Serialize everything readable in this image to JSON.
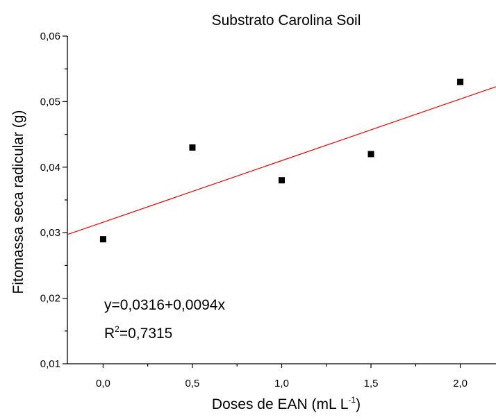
{
  "chart_data": {
    "type": "scatter",
    "title": "Substrato Carolina Soil",
    "xlabel": {
      "base": "Doses de EAN (mL L",
      "sup": "-1",
      "close": ")"
    },
    "ylabel": "Fitomassa seca radicular (g)",
    "xlim": [
      -0.2,
      2.2
    ],
    "ylim": [
      0.01,
      0.06
    ],
    "x_ticks": [
      0.0,
      0.5,
      1.0,
      1.5,
      2.0
    ],
    "x_tick_labels": [
      "0,0",
      "0,5",
      "1,0",
      "1,5",
      "2,0"
    ],
    "y_ticks": [
      0.01,
      0.02,
      0.03,
      0.04,
      0.05,
      0.06
    ],
    "y_tick_labels": [
      "0,01",
      "0,02",
      "0,03",
      "0,04",
      "0,05",
      "0,06"
    ],
    "grid": false,
    "points": [
      {
        "x": 0.0,
        "y": 0.029
      },
      {
        "x": 0.5,
        "y": 0.043
      },
      {
        "x": 1.0,
        "y": 0.038
      },
      {
        "x": 1.5,
        "y": 0.042
      },
      {
        "x": 2.0,
        "y": 0.053
      }
    ],
    "fit": {
      "intercept": 0.0316,
      "slope": 0.0094
    },
    "annotations": {
      "equation": "y=0,0316+0,0094x",
      "r2_base": "R",
      "r2_sup": "2",
      "r2_value": "=0,7315"
    },
    "colors": {
      "points": "#000000",
      "fit_line": "#ff0000",
      "axes": "#000000"
    }
  }
}
